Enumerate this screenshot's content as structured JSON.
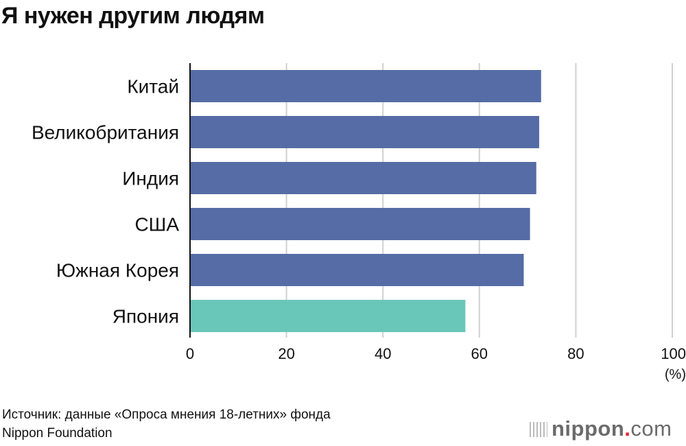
{
  "title": "Я нужен другим людям",
  "source": "Источник: данные «Опроса мнения 18-летних» фонда Nippon Foundation",
  "source_lines": [
    "Источник: данные «Опроса мнения 18-летних» фонда",
    "Nippon Foundation"
  ],
  "logo": {
    "main": "nippon",
    "dot": ".",
    "suffix": "com"
  },
  "chart_data": {
    "type": "bar",
    "orientation": "horizontal",
    "title": "Я нужен другим людям",
    "categories": [
      "Китай",
      "Великобритания",
      "Индия",
      "США",
      "Южная Корея",
      "Япония"
    ],
    "values": [
      72.8,
      72.4,
      71.8,
      70.5,
      69.2,
      57.1
    ],
    "colors": [
      "#566ca6",
      "#566ca6",
      "#566ca6",
      "#566ca6",
      "#566ca6",
      "#69c7ba"
    ],
    "xlim": [
      0,
      100
    ],
    "xticks": [
      0,
      20,
      40,
      60,
      80,
      100
    ],
    "xlabel": "(%)",
    "grid": true
  }
}
